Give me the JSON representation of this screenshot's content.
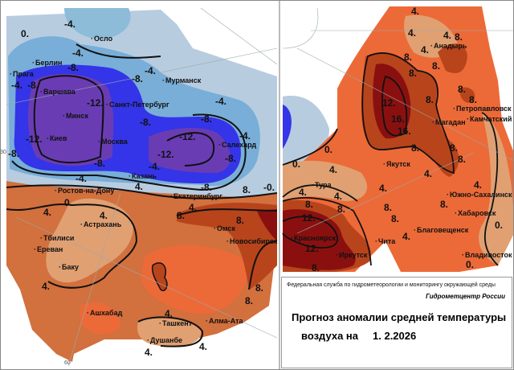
{
  "caption": {
    "agency": "Федеральная служба по гидрометеорологии и мониторингу окружающей среды",
    "center": "Гидрометцентр России",
    "title_line1": "Прогноз аномалии средней температуры",
    "title_line2": "воздуха на",
    "date": "1. 2.2026"
  },
  "left_map": {
    "cities": [
      "Осло",
      "Берлин",
      "Прага",
      "Мурманск",
      "Варшава",
      "Санкт-Петербург",
      "Минск",
      "Киев",
      "Москва",
      "Салехард",
      "Казань",
      "Ростов-на-Дону",
      "Екатеринбург",
      "Астрахань",
      "Омск",
      "Тбилиси",
      "Новосибирск",
      "Ереван",
      "Баку",
      "Ашхабад",
      "Ташкент",
      "Алма-Ата",
      "Душанбе"
    ],
    "contour_labels": [
      "0.",
      "-4.",
      "-4.",
      "-8.",
      "-8.",
      "-4.",
      "-4.",
      "-8.",
      "-12.",
      "-8.",
      "-12.",
      "-8.",
      "-8.",
      "-4.",
      "-4.",
      "-12.",
      "-12.",
      "-8.",
      "-4.",
      "-8.",
      "-4.",
      "-8.",
      "-0.",
      "0.",
      "4.",
      "4.",
      "4.",
      "4.",
      "8.",
      "8.",
      "8.",
      "4.",
      "8.",
      "8.",
      "4.",
      "4.",
      "4."
    ],
    "grid_labels": [
      "30",
      "60"
    ]
  },
  "right_map": {
    "cities": [
      "Анадырь",
      "Петропавловск",
      "Камчатский",
      "Магадан",
      "Якутск",
      "Тура",
      "Южно-Сахалинск",
      "Хабаровск",
      "Благовещенск",
      "Красноярск",
      "Чита",
      "Иркутск",
      "Владивосток"
    ],
    "contour_labels": [
      "4.",
      "4.",
      "4.",
      "8.",
      "4.",
      "8.",
      "8.",
      "8.",
      "8.",
      "8.",
      "8.",
      "12.",
      "16.",
      "16.",
      "8.",
      "8.",
      "8.",
      "0.",
      "0.",
      "4.",
      "4.",
      "4.",
      "4.",
      "4.",
      "8.",
      "8.",
      "8.",
      "8.",
      "8.",
      "4.",
      "12.",
      "12.",
      "8.",
      "0.",
      "4.",
      "0."
    ]
  },
  "legend_colors": {
    "anomaly_minus_12": "#6a3cb4",
    "anomaly_minus_8": "#3434e8",
    "anomaly_minus_4": "#5a8ed4",
    "anomaly_0": "#b4c8e0",
    "anomaly_plus_0": "#e8c48c",
    "anomaly_plus_4": "#e8703c",
    "anomaly_plus_8": "#b8441c",
    "anomaly_plus_12": "#8a1010"
  }
}
